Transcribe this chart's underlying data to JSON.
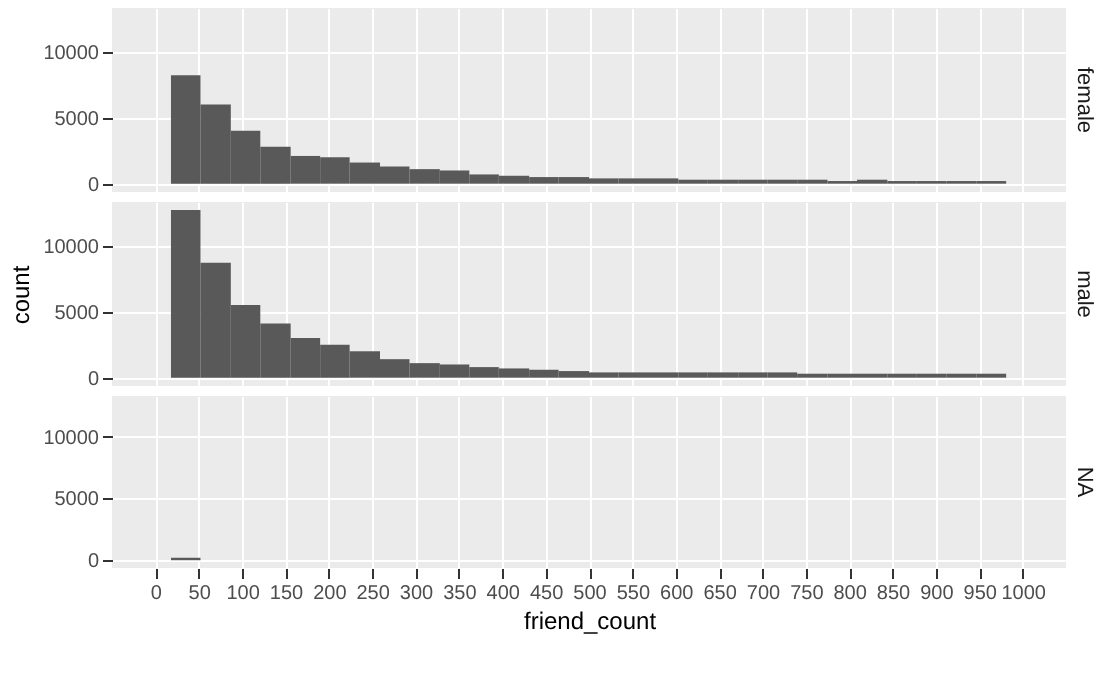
{
  "chart_data": [
    {
      "type": "histogram",
      "title": "female",
      "color": "#595959",
      "bins": [
        18,
        52,
        87,
        121,
        156,
        190,
        224,
        259,
        293,
        328,
        362,
        396,
        431,
        465,
        500,
        534,
        568,
        603,
        637,
        672,
        706,
        740,
        775,
        809,
        844,
        878,
        912,
        947,
        981
      ],
      "values": [
        8200,
        6000,
        4000,
        2800,
        2100,
        2000,
        1600,
        1300,
        1100,
        1000,
        700,
        600,
        500,
        500,
        400,
        400,
        400,
        300,
        300,
        300,
        300,
        300,
        200,
        300,
        200,
        200,
        200,
        200
      ],
      "xlim": [
        -50,
        1050
      ],
      "xticks": [
        0,
        50,
        100,
        150,
        200,
        250,
        300,
        350,
        400,
        450,
        500,
        550,
        600,
        650,
        700,
        750,
        800,
        850,
        900,
        950,
        1000
      ],
      "ylim": [
        -630,
        13300
      ],
      "yticks": [
        0,
        5000,
        10000
      ],
      "grid": true,
      "tick_labels": "y"
    },
    {
      "type": "histogram",
      "title": "male",
      "ylabel": "count",
      "color": "#595959",
      "bins": [
        18,
        52,
        87,
        121,
        156,
        190,
        224,
        259,
        293,
        328,
        362,
        396,
        431,
        465,
        500,
        534,
        568,
        603,
        637,
        672,
        706,
        740,
        775,
        809,
        844,
        878,
        912,
        947,
        981
      ],
      "values": [
        12700,
        8700,
        5500,
        4100,
        3000,
        2500,
        2000,
        1400,
        1100,
        1000,
        800,
        700,
        600,
        500,
        400,
        400,
        400,
        400,
        400,
        400,
        400,
        300,
        300,
        300,
        300,
        300,
        300,
        300
      ],
      "xlim": [
        -50,
        1050
      ],
      "xticks": [
        0,
        50,
        100,
        150,
        200,
        250,
        300,
        350,
        400,
        450,
        500,
        550,
        600,
        650,
        700,
        750,
        800,
        850,
        900,
        950,
        1000
      ],
      "ylim": [
        -630,
        13300
      ],
      "yticks": [
        0,
        5000,
        10000
      ],
      "grid": true,
      "tick_labels": "y"
    },
    {
      "type": "histogram",
      "title": "NA",
      "xlabel": "friend_count",
      "color": "#595959",
      "bins": [
        18,
        52
      ],
      "values": [
        200
      ],
      "xlim": [
        -50,
        1050
      ],
      "xticks": [
        0,
        50,
        100,
        150,
        200,
        250,
        300,
        350,
        400,
        450,
        500,
        550,
        600,
        650,
        700,
        750,
        800,
        850,
        900,
        950,
        1000
      ],
      "ylim": [
        -630,
        13300
      ],
      "yticks": [
        0,
        5000,
        10000
      ],
      "grid": true
    }
  ]
}
